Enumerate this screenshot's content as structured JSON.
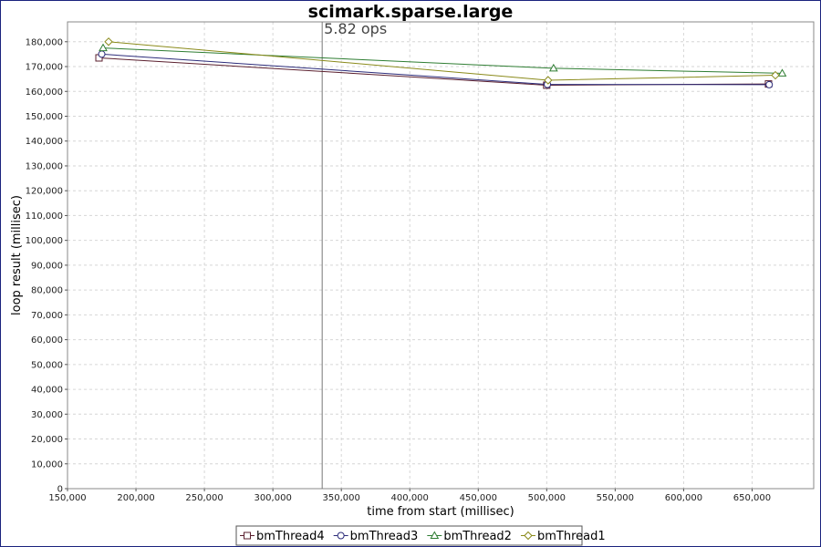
{
  "chart_data": {
    "type": "line",
    "title": "scimark.sparse.large",
    "xlabel": "time from start (millisec)",
    "ylabel": "loop result (millisec)",
    "xlim": [
      150000,
      695000
    ],
    "ylim": [
      0,
      188000
    ],
    "x_ticks": [
      150000,
      200000,
      250000,
      300000,
      350000,
      400000,
      450000,
      500000,
      550000,
      600000,
      650000
    ],
    "x_tick_labels": [
      "150,000",
      "200,000",
      "250,000",
      "300,000",
      "350,000",
      "400,000",
      "450,000",
      "500,000",
      "550,000",
      "600,000",
      "650,000"
    ],
    "y_ticks": [
      0,
      10000,
      20000,
      30000,
      40000,
      50000,
      60000,
      70000,
      80000,
      90000,
      100000,
      110000,
      120000,
      130000,
      140000,
      150000,
      160000,
      170000,
      180000
    ],
    "y_tick_labels": [
      "0",
      "10,000",
      "20,000",
      "30,000",
      "40,000",
      "50,000",
      "60,000",
      "70,000",
      "80,000",
      "90,000",
      "100,000",
      "110,000",
      "120,000",
      "130,000",
      "140,000",
      "150,000",
      "160,000",
      "170,000",
      "180,000"
    ],
    "grid": true,
    "legend_position": "bottom-center",
    "marker": {
      "x": 336000,
      "label": "5.82 ops"
    },
    "series": [
      {
        "name": "bmThread4",
        "color": "#5a1f2e",
        "symbol": "square",
        "x": [
          173000,
          500000,
          662000
        ],
        "y": [
          173500,
          162500,
          163000
        ]
      },
      {
        "name": "bmThread3",
        "color": "#2c2c7a",
        "symbol": "circle",
        "x": [
          175000,
          500500,
          662500
        ],
        "y": [
          175000,
          162800,
          162700
        ]
      },
      {
        "name": "bmThread2",
        "color": "#2e7d32",
        "symbol": "triangle",
        "x": [
          176000,
          505000,
          672000
        ],
        "y": [
          177500,
          169300,
          167300
        ]
      },
      {
        "name": "bmThread1",
        "color": "#8a8a1a",
        "symbol": "diamond",
        "x": [
          180000,
          501000,
          667000
        ],
        "y": [
          180000,
          164500,
          166500
        ]
      }
    ]
  }
}
